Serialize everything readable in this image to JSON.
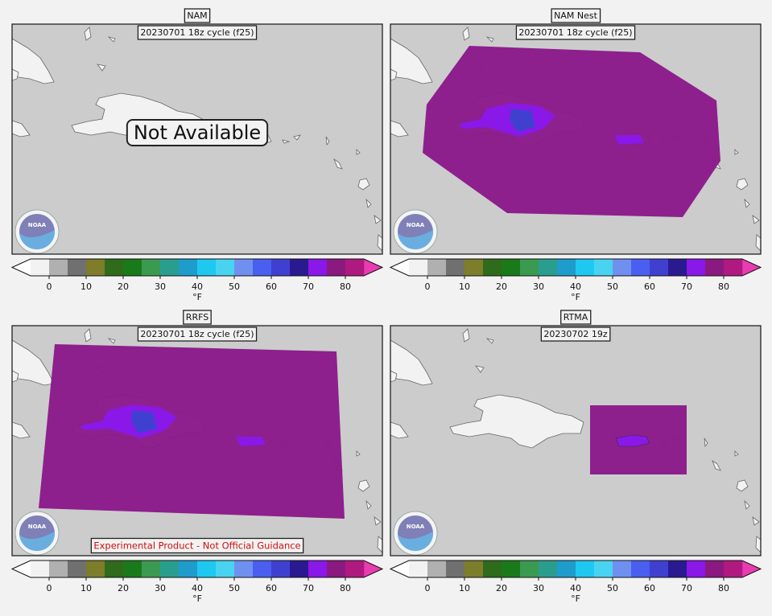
{
  "panels": [
    {
      "title": "NAM",
      "subtitle": "20230701 18z cycle (f25)",
      "message": "Not Available"
    },
    {
      "title": "NAM Nest",
      "subtitle": "20230701 18z cycle (f25)"
    },
    {
      "title": "RRFS",
      "subtitle": "20230701 18z cycle (f25)",
      "footer": "Experimental Product - Not Official Guidance"
    },
    {
      "title": "RTMA",
      "subtitle": "20230702 19z"
    }
  ],
  "colorbar": {
    "lim": [
      -5,
      85
    ],
    "ticks": [
      0,
      10,
      20,
      30,
      40,
      50,
      60,
      70,
      80
    ],
    "label": "°F",
    "under": "#ffffff",
    "over": "#e83cb0",
    "colors": [
      "#f2f2f2",
      "#b0b0b0",
      "#707070",
      "#7d7d2a",
      "#2e6b1a",
      "#1a7a1a",
      "#3a9a50",
      "#2a9e8e",
      "#1e9ccc",
      "#1ec8f0",
      "#48d4f0",
      "#7090f0",
      "#4a5ef0",
      "#4040d0",
      "#2a1a90",
      "#8a18e8",
      "#8a1a80",
      "#b01a80"
    ]
  },
  "logo_text": "NOAA"
}
